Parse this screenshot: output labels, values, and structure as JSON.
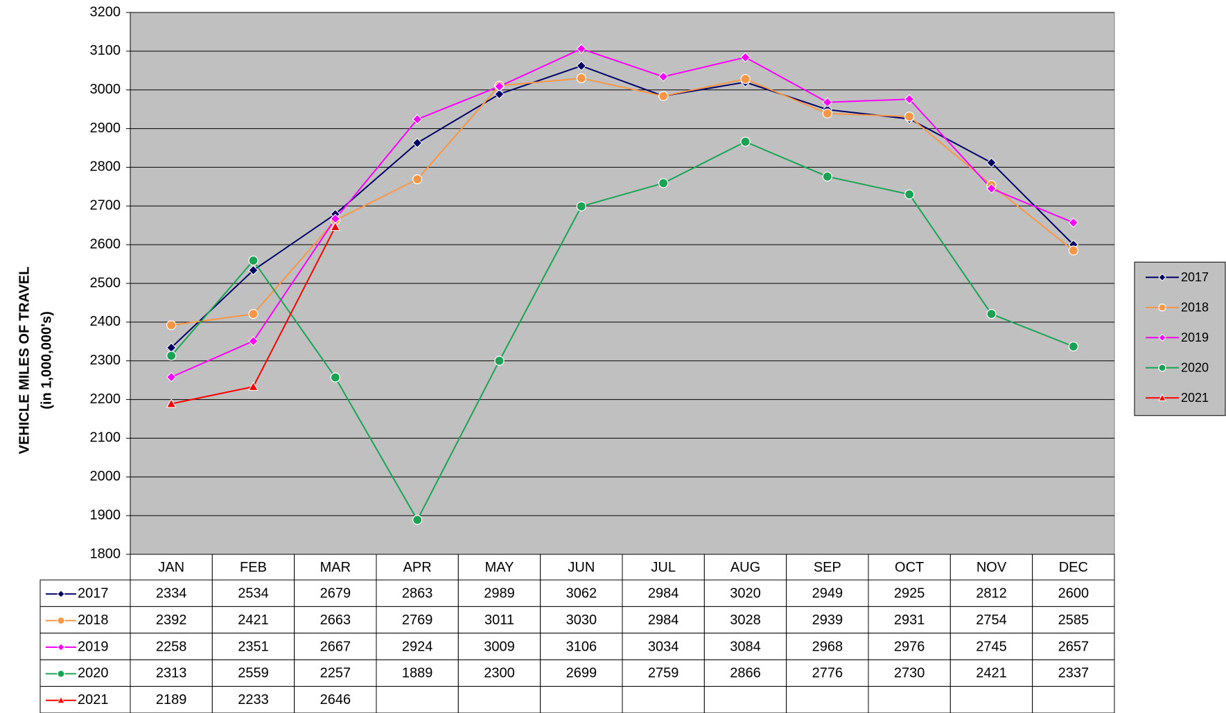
{
  "chart_data": {
    "type": "line",
    "y_label": [
      "VEHICLE MILES OF TRAVEL",
      "(in 1,000,000's)"
    ],
    "categories": [
      "JAN",
      "FEB",
      "MAR",
      "APR",
      "MAY",
      "JUN",
      "JUL",
      "AUG",
      "SEP",
      "OCT",
      "NOV",
      "DEC"
    ],
    "series": [
      {
        "name": "2017",
        "color": "#000066",
        "marker": "diamond",
        "values": [
          2334,
          2534,
          2679,
          2863,
          2989,
          3062,
          2984,
          3020,
          2949,
          2925,
          2812,
          2600
        ]
      },
      {
        "name": "2018",
        "color": "#F79646",
        "marker": "circle",
        "values": [
          2392,
          2421,
          2663,
          2769,
          3011,
          3030,
          2984,
          3028,
          2939,
          2931,
          2754,
          2585
        ]
      },
      {
        "name": "2019",
        "color": "#FF00FF",
        "marker": "diamond",
        "values": [
          2258,
          2351,
          2667,
          2924,
          3009,
          3106,
          3034,
          3084,
          2968,
          2976,
          2745,
          2657
        ]
      },
      {
        "name": "2020",
        "color": "#1BA355",
        "marker": "circle",
        "values": [
          2313,
          2559,
          2257,
          1889,
          2300,
          2699,
          2759,
          2866,
          2776,
          2730,
          2421,
          2337
        ]
      },
      {
        "name": "2021",
        "color": "#FF0000",
        "marker": "triangle",
        "values": [
          2189,
          2233,
          2646,
          null,
          null,
          null,
          null,
          null,
          null,
          null,
          null,
          null
        ]
      }
    ],
    "ylim": [
      1800,
      3200
    ],
    "yticks": [
      1800,
      1900,
      2000,
      2100,
      2200,
      2300,
      2400,
      2500,
      2600,
      2700,
      2800,
      2900,
      3000,
      3100,
      3200
    ],
    "grid": true,
    "plot_background": "#C0C0C0",
    "legend": "right",
    "data_table": true
  }
}
